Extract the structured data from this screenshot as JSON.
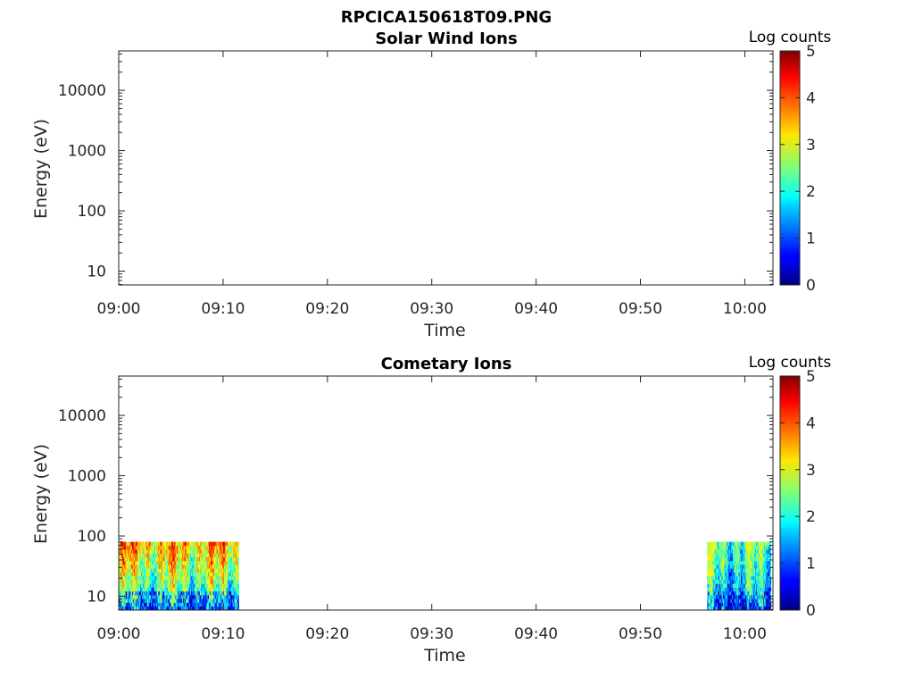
{
  "figure_title": "RPCICA150618T09.PNG",
  "chart_data": [
    {
      "type": "heatmap",
      "title": "Solar Wind Ions",
      "xlabel": "Time",
      "ylabel": "Energy (eV)",
      "x_ticks": [
        "09:00",
        "09:10",
        "09:20",
        "09:30",
        "09:40",
        "09:50",
        "10:00"
      ],
      "x_tick_minutes": [
        0,
        10,
        20,
        30,
        40,
        50,
        60
      ],
      "x_range_minutes": [
        0,
        62.7
      ],
      "y_scale": "log",
      "y_ticks": [
        "10",
        "100",
        "1000",
        "10000"
      ],
      "y_tick_values": [
        10,
        100,
        1000,
        10000
      ],
      "y_range": [
        5.9,
        45000
      ],
      "colorbar": {
        "label": "Log counts",
        "ticks": [
          "0",
          "1",
          "2",
          "3",
          "4",
          "5"
        ],
        "range": [
          0,
          5
        ],
        "colormap": "jet"
      },
      "data_blocks": []
    },
    {
      "type": "heatmap",
      "title": "Cometary Ions",
      "xlabel": "Time",
      "ylabel": "Energy (eV)",
      "x_ticks": [
        "09:00",
        "09:10",
        "09:20",
        "09:30",
        "09:40",
        "09:50",
        "10:00"
      ],
      "x_tick_minutes": [
        0,
        10,
        20,
        30,
        40,
        50,
        60
      ],
      "x_range_minutes": [
        0,
        62.7
      ],
      "y_scale": "log",
      "y_ticks": [
        "10",
        "100",
        "1000",
        "10000"
      ],
      "y_tick_values": [
        10,
        100,
        1000,
        10000
      ],
      "y_range": [
        5.9,
        45000
      ],
      "colorbar": {
        "label": "Log counts",
        "ticks": [
          "0",
          "1",
          "2",
          "3",
          "4",
          "5"
        ],
        "range": [
          0,
          5
        ],
        "colormap": "jet"
      },
      "data_blocks": [
        {
          "time_start_minutes": 0.0,
          "time_end_minutes": 11.5,
          "energy_min": 5.9,
          "energy_max": 80,
          "log_counts_min": 0.3,
          "log_counts_max": 4.6,
          "typical_high_energy": 3.5,
          "typical_low_energy": 1.3
        },
        {
          "time_start_minutes": 56.4,
          "time_end_minutes": 62.5,
          "energy_min": 5.9,
          "energy_max": 80,
          "log_counts_min": 0.3,
          "log_counts_max": 3.2,
          "typical_high_energy": 2.4,
          "typical_low_energy": 1.1
        }
      ]
    }
  ]
}
